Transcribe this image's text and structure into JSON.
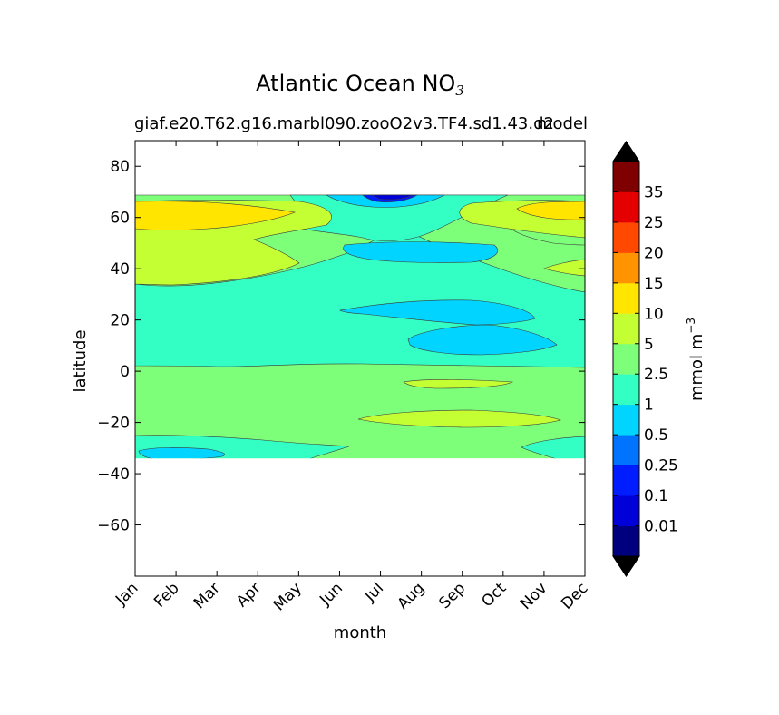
{
  "chart_data": {
    "type": "contourf",
    "title": "Atlantic Ocean NO",
    "title_subscript": "3",
    "subtitle_left": "giaf.e20.T62.g16.marbl090.zooO2v3.TF4.sd1.43.d2",
    "subtitle_right": "model",
    "xlabel": "month",
    "ylabel": "latitude",
    "x_ticks": [
      "Jan",
      "Feb",
      "Mar",
      "Apr",
      "May",
      "Jun",
      "Jul",
      "Aug",
      "Sep",
      "Oct",
      "Nov",
      "Dec"
    ],
    "xlim": [
      1,
      12
    ],
    "ylim": [
      -80,
      90
    ],
    "y_ticks": [
      80,
      60,
      40,
      20,
      0,
      -20,
      -40,
      -60
    ],
    "y_tick_labels": [
      "80",
      "60",
      "40",
      "20",
      "0",
      "−20",
      "−40",
      "−60"
    ],
    "data_lat_range": [
      -34,
      69
    ],
    "colorbar": {
      "label": "mmol m",
      "label_exponent": "−3",
      "extend": "both",
      "levels": [
        0,
        0.01,
        0.1,
        0.25,
        0.5,
        1,
        2.5,
        5,
        10,
        15,
        20,
        25,
        35,
        40
      ],
      "tick_labels": [
        "0.01",
        "0.1",
        "0.25",
        "0.5",
        "1",
        "2.5",
        "5",
        "10",
        "15",
        "20",
        "25",
        "35"
      ],
      "colors": [
        "#00007f",
        "#0000d9",
        "#001dff",
        "#0074ff",
        "#00d4ff",
        "#33ffc4",
        "#7dff7a",
        "#c4ff33",
        "#ffe500",
        "#ff9400",
        "#ff4800",
        "#e40000",
        "#7f0000"
      ]
    },
    "contour_regions": [
      {
        "level": "2.5-5",
        "description": "southern and equatorial band",
        "lat": [
          -34,
          3
        ]
      },
      {
        "level": "1-2.5",
        "description": "tropical to mid-latitude band",
        "lat": [
          3,
          35
        ]
      },
      {
        "level": "5-10",
        "description": "subpolar winter band",
        "lat": [
          35,
          69
        ]
      },
      {
        "level": "10-15",
        "description": "northern winter maximum",
        "lat": [
          56,
          68
        ]
      },
      {
        "level": "0.5-1",
        "description": "summer minima",
        "lat": [
          8,
          52
        ]
      },
      {
        "level": "0.01-0.5",
        "description": "July high-latitude minimum",
        "lat": [
          66,
          69
        ]
      }
    ]
  }
}
